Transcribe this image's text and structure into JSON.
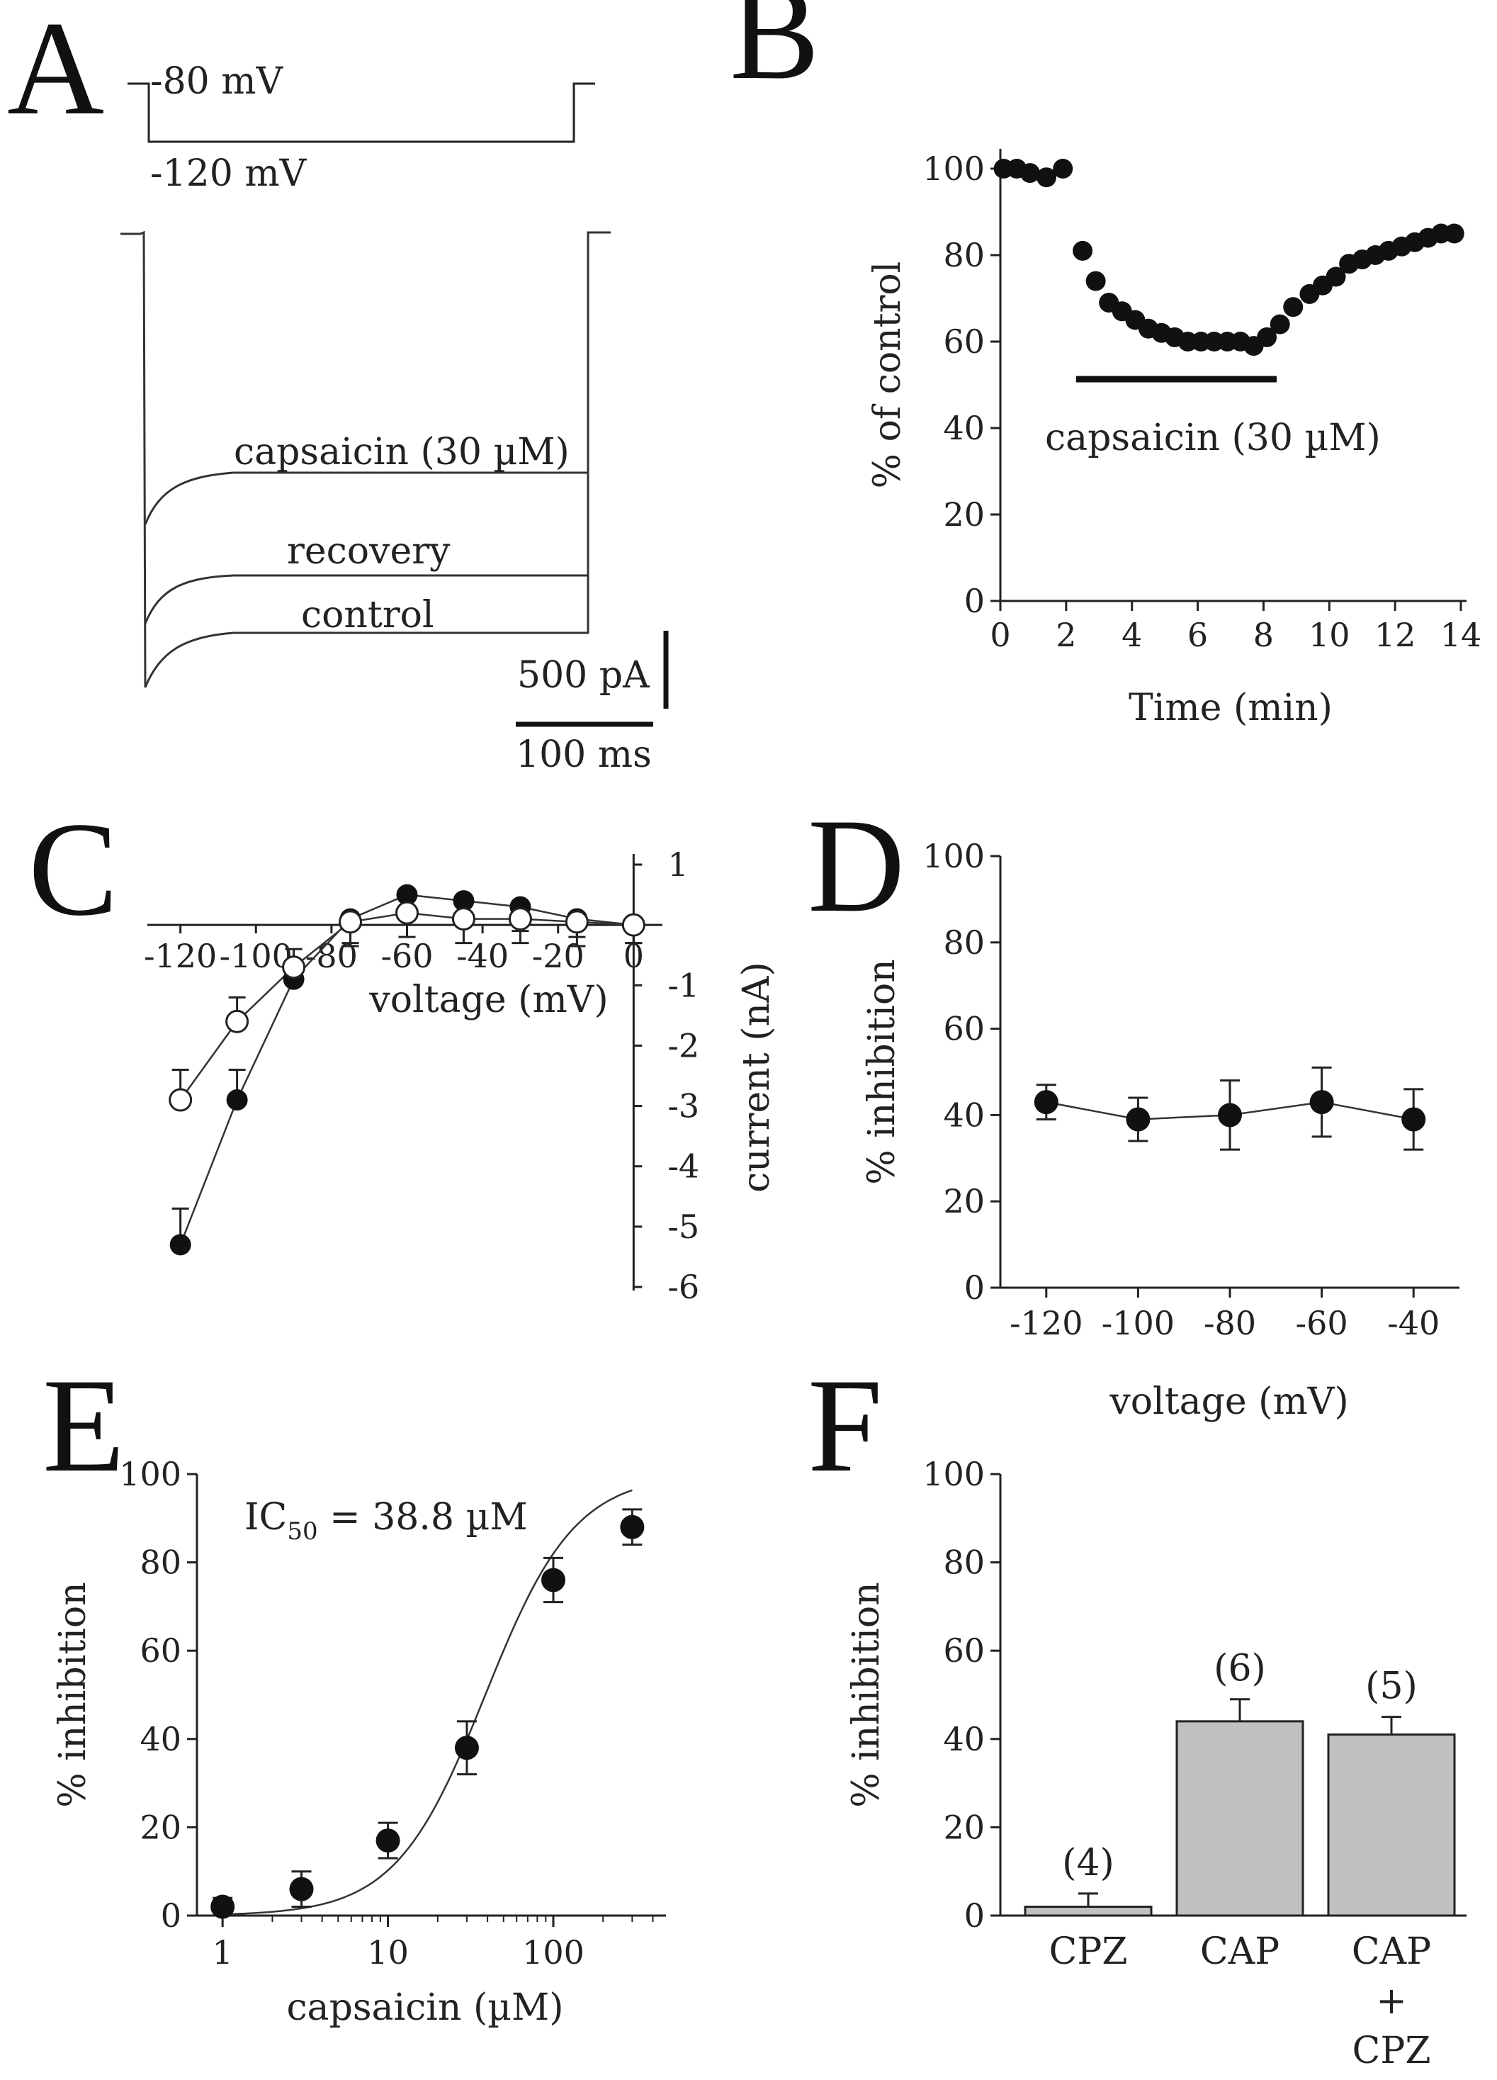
{
  "panels": {
    "A": {
      "letter": "A",
      "protocol": {
        "holding_label": "-80 mV",
        "step_label": "-120 mV"
      },
      "traces": [
        {
          "name": "capsaicin",
          "label": "capsaicin (30 µM)"
        },
        {
          "name": "recovery",
          "label": "recovery"
        },
        {
          "name": "control",
          "label": "control"
        }
      ],
      "scalebar": {
        "current_label": "500 pA",
        "time_label": "100 ms"
      }
    },
    "B": {
      "letter": "B"
    },
    "C": {
      "letter": "C"
    },
    "D": {
      "letter": "D"
    },
    "E": {
      "letter": "E"
    },
    "F": {
      "letter": "F"
    }
  },
  "chart_data": [
    {
      "id": "B",
      "type": "scatter",
      "xlabel": "Time (min)",
      "ylabel": "% of control",
      "xlim": [
        0,
        14
      ],
      "ylim": [
        0,
        100
      ],
      "xticks": [
        0,
        2,
        4,
        6,
        8,
        10,
        12,
        14
      ],
      "yticks": [
        0,
        20,
        40,
        60,
        80,
        100
      ],
      "annotation": "capsaicin (30 µM)",
      "bar_interval": [
        2.3,
        8.4
      ],
      "x": [
        0.1,
        0.5,
        0.9,
        1.4,
        1.9,
        2.5,
        2.9,
        3.3,
        3.7,
        4.1,
        4.5,
        4.9,
        5.3,
        5.7,
        6.1,
        6.5,
        6.9,
        7.3,
        7.7,
        8.1,
        8.5,
        8.9,
        9.4,
        9.8,
        10.2,
        10.6,
        11.0,
        11.4,
        11.8,
        12.2,
        12.6,
        13.0,
        13.4,
        13.8
      ],
      "y": [
        100,
        100,
        99,
        98,
        100,
        81,
        74,
        69,
        67,
        65,
        63,
        62,
        61,
        60,
        60,
        60,
        60,
        60,
        59,
        61,
        64,
        68,
        71,
        73,
        75,
        78,
        79,
        80,
        81,
        82,
        83,
        84,
        85,
        85
      ]
    },
    {
      "id": "C",
      "type": "line",
      "xlabel": "voltage (mV)",
      "ylabel": "current (nA)",
      "xlim": [
        -125,
        2
      ],
      "ylim": [
        -6,
        1
      ],
      "xticks": [
        -120,
        -100,
        -80,
        -60,
        -40,
        -20,
        0
      ],
      "xtick_labels": [
        "-120",
        "-100",
        "-80",
        "-60",
        "-40",
        "-20",
        "0"
      ],
      "yticks": [
        1,
        -1,
        -2,
        -3,
        -4,
        -5,
        -6
      ],
      "x": [
        -120,
        -105,
        -90,
        -75,
        -60,
        -45,
        -30,
        -15,
        0
      ],
      "series": [
        {
          "name": "control",
          "marker": "filled",
          "values": [
            -5.3,
            -2.9,
            -0.9,
            0.1,
            0.5,
            0.4,
            0.3,
            0.1,
            0.0
          ],
          "errors": [
            0.6,
            0.5,
            0.3,
            0.4,
            0.4,
            0.3,
            0.4,
            0.3,
            0.3
          ]
        },
        {
          "name": "capsaicin",
          "marker": "open",
          "values": [
            -2.9,
            -1.6,
            -0.7,
            0.05,
            0.2,
            0.1,
            0.1,
            0.05,
            0.0
          ],
          "errors": [
            0.5,
            0.4,
            0.3,
            0.4,
            0.4,
            0.4,
            0.4,
            0.4,
            0.3
          ]
        }
      ]
    },
    {
      "id": "D",
      "type": "line",
      "xlabel": "voltage (mV)",
      "ylabel": "% inhibition",
      "xlim": [
        -130,
        -30
      ],
      "ylim": [
        0,
        100
      ],
      "xticks": [
        -120,
        -100,
        -80,
        -60,
        -40
      ],
      "yticks": [
        0,
        20,
        40,
        60,
        80,
        100
      ],
      "x": [
        -120,
        -100,
        -80,
        -60,
        -40
      ],
      "values": [
        43,
        39,
        40,
        43,
        39
      ],
      "errors": [
        4,
        5,
        8,
        8,
        7
      ]
    },
    {
      "id": "E",
      "type": "scatter",
      "scale_x": "log",
      "xlabel": "capsaicin (µM)",
      "ylabel": "% inhibition",
      "xlim": [
        0.7,
        480
      ],
      "ylim": [
        0,
        100
      ],
      "xticks": [
        1,
        10,
        100
      ],
      "xtick_labels": [
        "1",
        "10",
        "100"
      ],
      "yticks": [
        0,
        20,
        40,
        60,
        80,
        100
      ],
      "annotation": {
        "main": "IC",
        "sub": "50",
        "rest": " = 38.8 µM"
      },
      "fit": {
        "ic50": 38.8,
        "hill": 1.6
      },
      "x": [
        1,
        3,
        10,
        30,
        100,
        300
      ],
      "values": [
        2,
        6,
        17,
        38,
        76,
        88
      ],
      "errors": [
        2,
        4,
        4,
        6,
        5,
        4
      ]
    },
    {
      "id": "F",
      "type": "bar",
      "ylabel": "% inhibition",
      "ylim": [
        0,
        100
      ],
      "yticks": [
        0,
        20,
        40,
        60,
        80,
        100
      ],
      "categories": [
        [
          "CPZ"
        ],
        [
          "CAP"
        ],
        [
          "CAP",
          "+",
          "CPZ"
        ]
      ],
      "values": [
        2,
        44,
        41
      ],
      "errors": [
        3,
        5,
        4
      ],
      "n_labels": [
        "(4)",
        "(6)",
        "(5)"
      ]
    }
  ]
}
